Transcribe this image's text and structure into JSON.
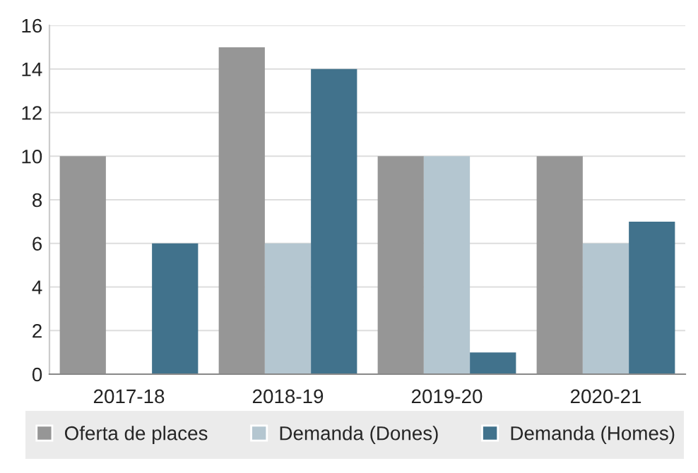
{
  "chart_data": {
    "type": "bar",
    "categories": [
      "2017-18",
      "2018-19",
      "2019-20",
      "2020-21"
    ],
    "series": [
      {
        "name": "Oferta de places",
        "color": "#969696",
        "values": [
          10,
          15,
          10,
          10
        ]
      },
      {
        "name": "Demanda (Dones)",
        "color": "#b4c6d0",
        "values": [
          null,
          6,
          10,
          6
        ]
      },
      {
        "name": "Demanda (Homes)",
        "color": "#41728c",
        "values": [
          6,
          14,
          1,
          7
        ]
      }
    ],
    "ylim": [
      0,
      16
    ],
    "yticks": [
      0,
      2,
      4,
      6,
      8,
      10,
      12,
      14,
      16
    ],
    "grid": "y",
    "legend": "bottom"
  }
}
